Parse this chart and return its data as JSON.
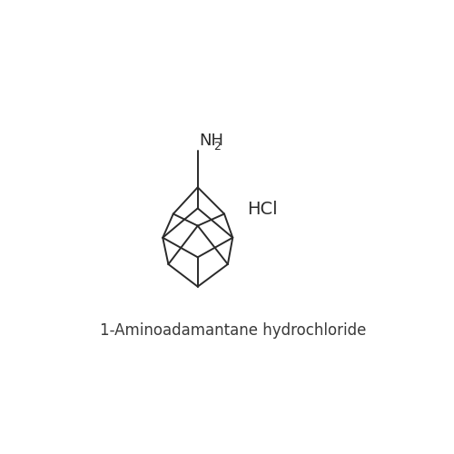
{
  "title": "1-Aminoadamantane hydrochloride",
  "title_fontsize": 12,
  "background_color": "#ffffff",
  "line_color": "#2a2a2a",
  "line_width": 1.4,
  "nh2_label": "NH",
  "nh2_sub": "2",
  "hcl_label": "HCl",
  "label_fontsize": 13,
  "sub_fontsize": 9,
  "hcl_fontsize": 14
}
